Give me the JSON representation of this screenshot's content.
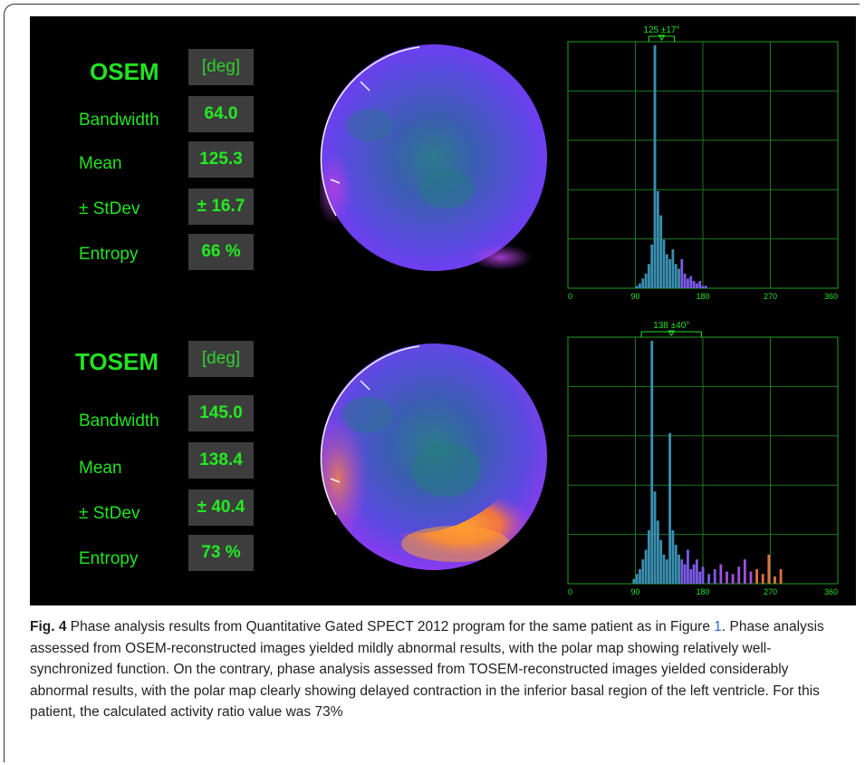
{
  "figure": {
    "panels": [
      {
        "method": "OSEM",
        "unit": "[deg]",
        "metrics": [
          {
            "label": "Bandwidth",
            "value": "64.0"
          },
          {
            "label": "Mean",
            "value": "125.3"
          },
          {
            "label": "± StDev",
            "value": "± 16.7"
          },
          {
            "label": "Entropy",
            "value": "66 %"
          }
        ]
      },
      {
        "method": "TOSEM",
        "unit": "[deg]",
        "metrics": [
          {
            "label": "Bandwidth",
            "value": "145.0"
          },
          {
            "label": "Mean",
            "value": "138.4"
          },
          {
            "label": "± StDev",
            "value": "± 40.4"
          },
          {
            "label": "Entropy",
            "value": "73 %"
          }
        ]
      }
    ]
  },
  "chart_data": [
    {
      "type": "bar",
      "annotation": "125 ±17°",
      "xlim": [
        0,
        360
      ],
      "xticks": [
        "0",
        "90",
        "180",
        "270",
        "360"
      ],
      "mean": 125,
      "sd": 17,
      "x": [
        92,
        96,
        100,
        104,
        108,
        112,
        116,
        120,
        124,
        128,
        132,
        136,
        140,
        144,
        148,
        152,
        156,
        160,
        164,
        168,
        172,
        176,
        180,
        184
      ],
      "values": [
        1,
        2,
        4,
        6,
        10,
        18,
        100,
        40,
        30,
        20,
        14,
        12,
        16,
        10,
        8,
        12,
        6,
        4,
        5,
        3,
        2,
        3,
        1,
        1
      ]
    },
    {
      "type": "bar",
      "annotation": "138 ±40°",
      "xlim": [
        0,
        360
      ],
      "xticks": [
        "0",
        "90",
        "180",
        "270",
        "360"
      ],
      "mean": 138,
      "sd": 40,
      "x": [
        88,
        92,
        96,
        100,
        104,
        108,
        112,
        116,
        120,
        124,
        128,
        132,
        136,
        140,
        144,
        148,
        152,
        156,
        160,
        164,
        168,
        172,
        176,
        180,
        188,
        196,
        204,
        212,
        220,
        228,
        236,
        244,
        252,
        260,
        268,
        276,
        284
      ],
      "values": [
        2,
        4,
        6,
        10,
        14,
        22,
        100,
        38,
        26,
        18,
        12,
        10,
        62,
        22,
        16,
        12,
        10,
        8,
        14,
        6,
        8,
        10,
        5,
        7,
        4,
        6,
        8,
        5,
        4,
        7,
        10,
        5,
        6,
        4,
        12,
        3,
        6
      ]
    }
  ],
  "caption": {
    "lead": "Fig. 4",
    "text1": " Phase analysis results from Quantitative Gated SPECT 2012 program for the same patient as in Figure ",
    "ref": "1",
    "text2": ". Phase analysis assessed from OSEM-reconstructed images yielded mildly abnormal results, with the polar map showing relatively well-synchronized function. On the contrary, phase analysis assessed from TOSEM-reconstructed images yielded considerably abnormal results, with the polar map clearly showing delayed contraction in the inferior basal region of the left ventricle. For this patient, the calculated activity ratio value was 73%"
  }
}
